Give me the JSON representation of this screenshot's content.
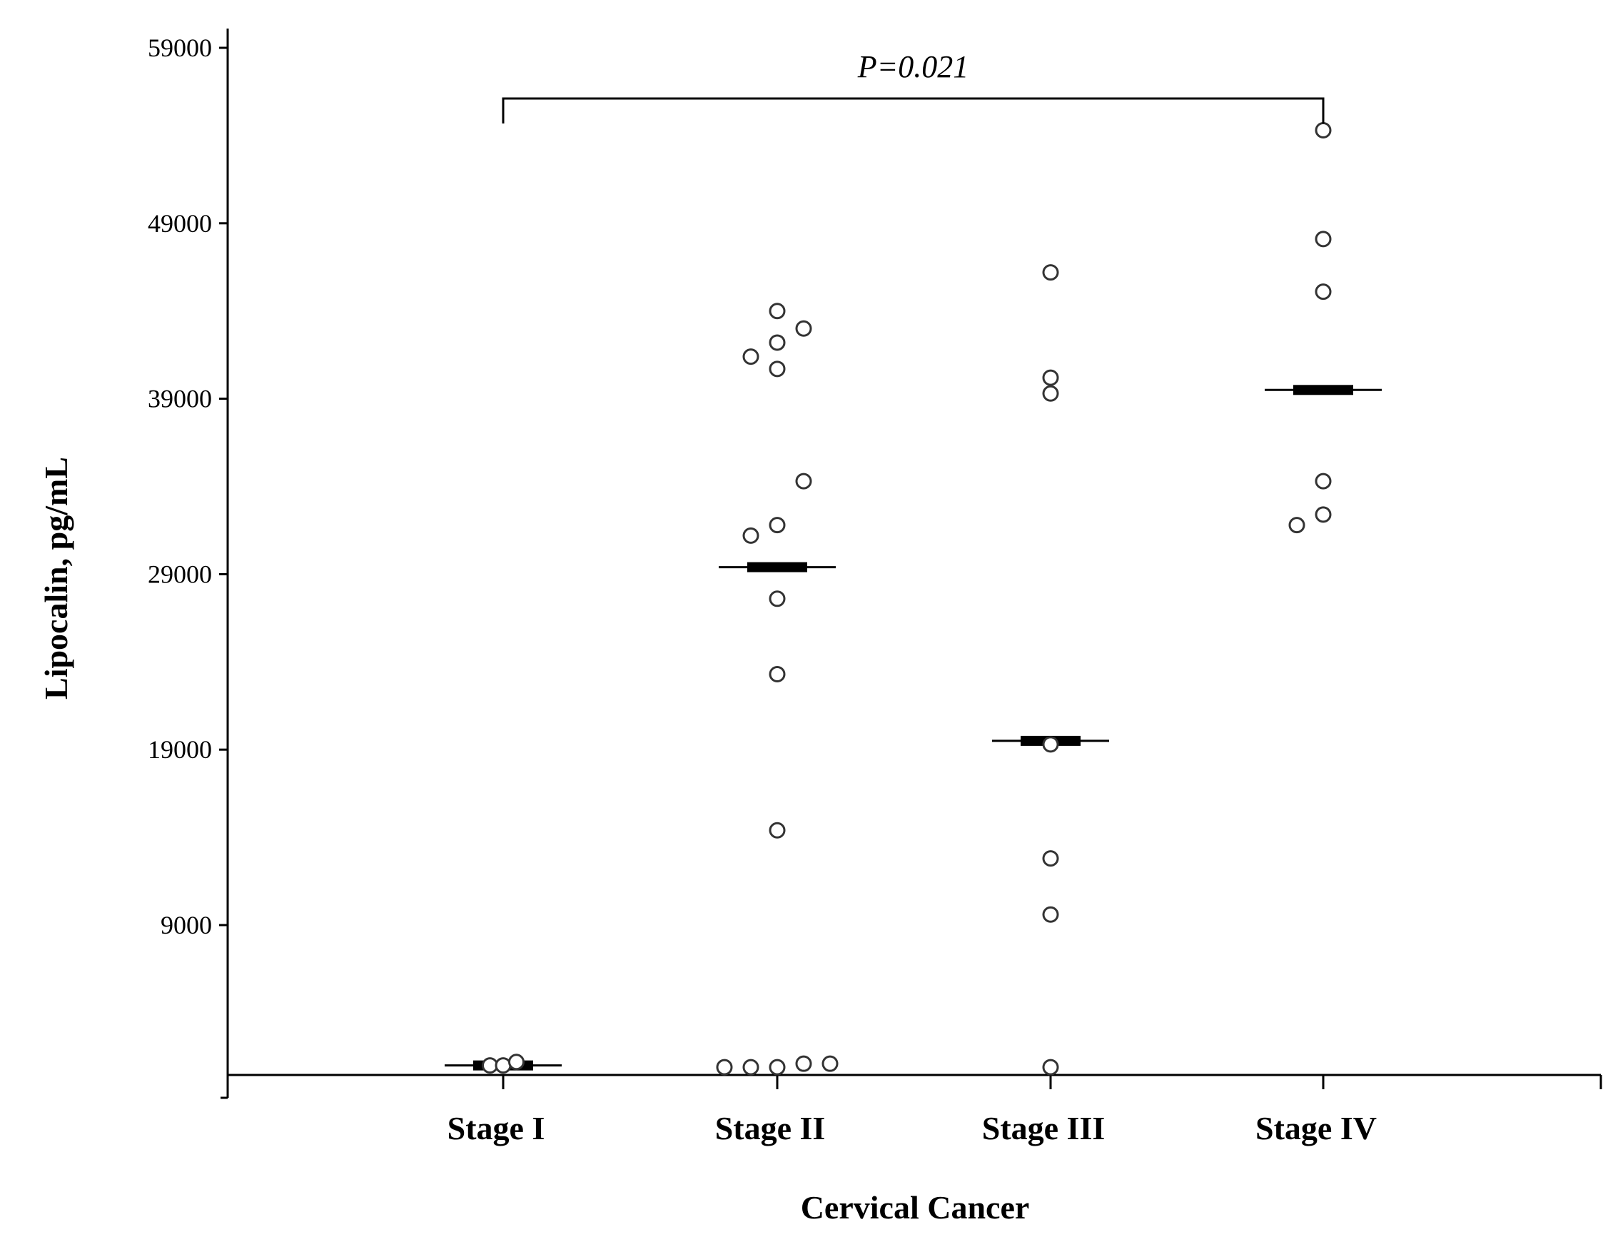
{
  "chart_data": {
    "type": "scatter",
    "xlabel": "Cervical Cancer",
    "ylabel": "Lipocalin, pg/mL",
    "ylim": [
      -1000,
      59000
    ],
    "yticks": [
      59000,
      49000,
      39000,
      29000,
      19000,
      9000
    ],
    "categories": [
      "Stage I",
      "Stage II",
      "Stage III",
      "Stage IV"
    ],
    "groups": [
      {
        "category": "Stage I",
        "points": [
          {
            "offset": -0.5,
            "y": 1000
          },
          {
            "offset": 0,
            "y": 1000
          },
          {
            "offset": 0.5,
            "y": 1200
          }
        ],
        "median": 1000
      },
      {
        "category": "Stage II",
        "points": [
          {
            "offset": 0,
            "y": 44000
          },
          {
            "offset": 1,
            "y": 43000
          },
          {
            "offset": 0,
            "y": 42200
          },
          {
            "offset": -1,
            "y": 41400
          },
          {
            "offset": 0,
            "y": 40700
          },
          {
            "offset": 1,
            "y": 34300
          },
          {
            "offset": 0,
            "y": 31800
          },
          {
            "offset": -1,
            "y": 31200
          },
          {
            "offset": 0,
            "y": 27600
          },
          {
            "offset": 0,
            "y": 23300
          },
          {
            "offset": 0,
            "y": 14400
          },
          {
            "offset": -2,
            "y": 900
          },
          {
            "offset": -1,
            "y": 900
          },
          {
            "offset": 0,
            "y": 900
          },
          {
            "offset": 1,
            "y": 1100
          },
          {
            "offset": 2,
            "y": 1100
          }
        ],
        "median": 29400
      },
      {
        "category": "Stage III",
        "points": [
          {
            "offset": 0,
            "y": 46200
          },
          {
            "offset": 0,
            "y": 40200
          },
          {
            "offset": 0,
            "y": 39300
          },
          {
            "offset": 0,
            "y": 19300
          },
          {
            "offset": 0,
            "y": 12800
          },
          {
            "offset": 0,
            "y": 9600
          },
          {
            "offset": 0,
            "y": 900
          }
        ],
        "median": 19500
      },
      {
        "category": "Stage IV",
        "points": [
          {
            "offset": 0,
            "y": 54300
          },
          {
            "offset": 0,
            "y": 48100
          },
          {
            "offset": 0,
            "y": 45100
          },
          {
            "offset": 0,
            "y": 34300
          },
          {
            "offset": 0,
            "y": 32400
          },
          {
            "offset": -1,
            "y": 31800
          }
        ],
        "median": 39500
      }
    ],
    "annotations": [
      {
        "text": "P=0.021",
        "from": "Stage I",
        "to": "Stage IV"
      }
    ],
    "grid": false,
    "legend": "none"
  }
}
